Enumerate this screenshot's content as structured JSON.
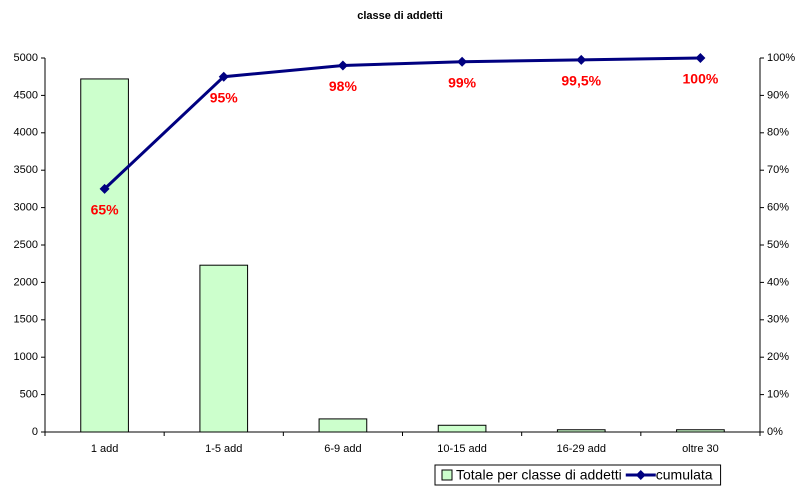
{
  "chart_data": {
    "type": "bar",
    "title": "classe di addetti",
    "categories": [
      "1 add",
      "1-5 add",
      "6-9 add",
      "10-15 add",
      "16-29 add",
      "oltre 30"
    ],
    "series": [
      {
        "name": "Totale per classe di addetti",
        "type": "bar",
        "color": "#ccffcc",
        "values": [
          4720,
          2230,
          175,
          90,
          30,
          30
        ]
      },
      {
        "name": "cumulata",
        "type": "line",
        "axis": "y2",
        "color": "#000080",
        "values": [
          65,
          95,
          98,
          99,
          99.5,
          100
        ],
        "value_labels": [
          "65%",
          "95%",
          "98%",
          "99%",
          "99,5%",
          "100%"
        ],
        "label_color": "#ff0000"
      }
    ],
    "ylim": [
      0,
      5000
    ],
    "yticks": [
      0,
      500,
      1000,
      1500,
      2000,
      2500,
      3000,
      3500,
      4000,
      4500,
      5000
    ],
    "y2lim": [
      0,
      100
    ],
    "y2ticks": [
      {
        "value": 0,
        "label": "0%"
      },
      {
        "value": 10,
        "label": "10%"
      },
      {
        "value": 20,
        "label": "20%"
      },
      {
        "value": 30,
        "label": "30%"
      },
      {
        "value": 40,
        "label": "40%"
      },
      {
        "value": 50,
        "label": "50%"
      },
      {
        "value": 60,
        "label": "60%"
      },
      {
        "value": 70,
        "label": "70%"
      },
      {
        "value": 80,
        "label": "80%"
      },
      {
        "value": 90,
        "label": "90%"
      },
      {
        "value": 100,
        "label": "100%"
      }
    ],
    "legend": "bottom"
  }
}
